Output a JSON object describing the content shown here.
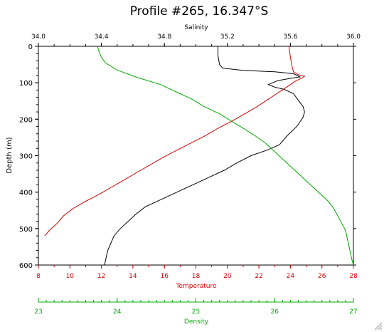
{
  "chart_data": {
    "type": "line",
    "title": "Profile #265, 16.347°S",
    "ylabel": "Depth (m)",
    "ylim": [
      0,
      600
    ],
    "y_inverted": true,
    "y_ticks": [
      0,
      100,
      200,
      300,
      400,
      500,
      600
    ],
    "axes": {
      "salinity": {
        "label": "Salinity",
        "position": "top",
        "color": "#000000",
        "lim": [
          34.0,
          36.0
        ],
        "ticks": [
          "34.0",
          "34.4",
          "34.8",
          "35.2",
          "35.6",
          "36.0"
        ]
      },
      "temperature": {
        "label": "Temperature",
        "position": "bottom",
        "color": "#d40000",
        "lim": [
          8,
          28
        ],
        "ticks": [
          "8",
          "10",
          "12",
          "14",
          "16",
          "18",
          "20",
          "22",
          "24",
          "26",
          "28"
        ]
      },
      "density": {
        "label": "Density",
        "position": "bottom-offset",
        "color": "#00aa00",
        "lim": [
          23,
          27
        ],
        "ticks": [
          "23",
          "24",
          "25",
          "26",
          "27"
        ]
      }
    },
    "series": [
      {
        "axis": "salinity",
        "color": "#000000",
        "points": [
          [
            35.14,
            0
          ],
          [
            35.14,
            25
          ],
          [
            35.15,
            50
          ],
          [
            35.17,
            60
          ],
          [
            35.3,
            66
          ],
          [
            35.5,
            70
          ],
          [
            35.62,
            75
          ],
          [
            35.66,
            84
          ],
          [
            35.6,
            88
          ],
          [
            35.52,
            94
          ],
          [
            35.46,
            105
          ],
          [
            35.5,
            112
          ],
          [
            35.56,
            118
          ],
          [
            35.62,
            130
          ],
          [
            35.65,
            148
          ],
          [
            35.68,
            165
          ],
          [
            35.69,
            180
          ],
          [
            35.68,
            195
          ],
          [
            35.64,
            220
          ],
          [
            35.58,
            245
          ],
          [
            35.53,
            270
          ],
          [
            35.45,
            285
          ],
          [
            35.35,
            300
          ],
          [
            35.26,
            320
          ],
          [
            35.18,
            340
          ],
          [
            35.08,
            360
          ],
          [
            34.98,
            380
          ],
          [
            34.88,
            400
          ],
          [
            34.78,
            420
          ],
          [
            34.68,
            440
          ],
          [
            34.62,
            460
          ],
          [
            34.57,
            480
          ],
          [
            34.52,
            500
          ],
          [
            34.48,
            520
          ],
          [
            34.46,
            540
          ],
          [
            34.44,
            560
          ],
          [
            34.43,
            580
          ],
          [
            34.42,
            600
          ]
        ]
      },
      {
        "axis": "temperature",
        "color": "#d40000",
        "points": [
          [
            23.9,
            0
          ],
          [
            24.0,
            30
          ],
          [
            24.1,
            55
          ],
          [
            24.2,
            70
          ],
          [
            24.5,
            78
          ],
          [
            24.9,
            82
          ],
          [
            24.7,
            88
          ],
          [
            24.3,
            96
          ],
          [
            23.9,
            108
          ],
          [
            23.3,
            125
          ],
          [
            22.6,
            145
          ],
          [
            21.9,
            165
          ],
          [
            21.1,
            185
          ],
          [
            20.3,
            205
          ],
          [
            19.4,
            225
          ],
          [
            18.6,
            245
          ],
          [
            17.7,
            265
          ],
          [
            16.8,
            285
          ],
          [
            15.9,
            305
          ],
          [
            15.1,
            325
          ],
          [
            14.3,
            345
          ],
          [
            13.5,
            365
          ],
          [
            12.7,
            385
          ],
          [
            11.9,
            405
          ],
          [
            11.0,
            425
          ],
          [
            10.2,
            445
          ],
          [
            9.6,
            465
          ],
          [
            9.2,
            485
          ],
          [
            8.7,
            505
          ],
          [
            8.4,
            520
          ]
        ]
      },
      {
        "axis": "density",
        "color": "#00aa00",
        "points": [
          [
            23.75,
            0
          ],
          [
            23.77,
            15
          ],
          [
            23.8,
            30
          ],
          [
            23.85,
            45
          ],
          [
            24.0,
            65
          ],
          [
            24.25,
            85
          ],
          [
            24.55,
            105
          ],
          [
            24.75,
            125
          ],
          [
            24.95,
            145
          ],
          [
            25.1,
            165
          ],
          [
            25.3,
            185
          ],
          [
            25.45,
            205
          ],
          [
            25.6,
            225
          ],
          [
            25.75,
            245
          ],
          [
            25.88,
            265
          ],
          [
            25.98,
            285
          ],
          [
            26.08,
            305
          ],
          [
            26.18,
            325
          ],
          [
            26.28,
            345
          ],
          [
            26.38,
            365
          ],
          [
            26.48,
            385
          ],
          [
            26.58,
            405
          ],
          [
            26.68,
            425
          ],
          [
            26.75,
            445
          ],
          [
            26.8,
            465
          ],
          [
            26.85,
            485
          ],
          [
            26.9,
            505
          ],
          [
            26.92,
            525
          ],
          [
            26.94,
            545
          ],
          [
            26.96,
            565
          ],
          [
            26.98,
            585
          ],
          [
            27.0,
            600
          ]
        ]
      }
    ]
  },
  "window": {
    "resize_grip_icon": "resize-grip-icon"
  }
}
